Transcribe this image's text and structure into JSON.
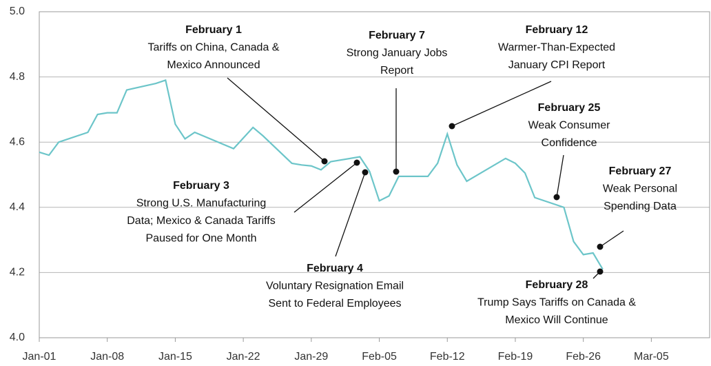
{
  "chart_data": {
    "type": "line",
    "x": [
      "Jan-01",
      "Jan-02",
      "Jan-03",
      "Jan-06",
      "Jan-07",
      "Jan-08",
      "Jan-09",
      "Jan-10",
      "Jan-13",
      "Jan-14",
      "Jan-15",
      "Jan-16",
      "Jan-17",
      "Jan-21",
      "Jan-23",
      "Jan-24",
      "Jan-27",
      "Jan-28",
      "Jan-29",
      "Jan-30",
      "Jan-31",
      "Feb-03",
      "Feb-04",
      "Feb-05",
      "Feb-06",
      "Feb-07",
      "Feb-10",
      "Feb-11",
      "Feb-12",
      "Feb-13",
      "Feb-14",
      "Feb-18",
      "Feb-19",
      "Feb-20",
      "Feb-21",
      "Feb-24",
      "Feb-25",
      "Feb-26",
      "Feb-27",
      "Feb-28"
    ],
    "series": [
      {
        "color": "#6cc5c9",
        "values": [
          4.569,
          4.56,
          4.6,
          4.63,
          4.685,
          4.69,
          4.69,
          4.76,
          4.78,
          4.79,
          4.655,
          4.61,
          4.63,
          4.58,
          4.645,
          4.62,
          4.535,
          4.53,
          4.527,
          4.515,
          4.54,
          4.555,
          4.51,
          4.42,
          4.435,
          4.495,
          4.495,
          4.535,
          4.625,
          4.53,
          4.48,
          4.55,
          4.535,
          4.505,
          4.43,
          4.4,
          4.295,
          4.255,
          4.26,
          4.21
        ]
      }
    ],
    "xlim": [
      "Jan-01",
      "Mar-11"
    ],
    "xticks": [
      "Jan-01",
      "Jan-08",
      "Jan-15",
      "Jan-22",
      "Jan-29",
      "Feb-05",
      "Feb-12",
      "Feb-19",
      "Feb-26",
      "Mar-05"
    ],
    "ylim": [
      4.0,
      5.0
    ],
    "yticks": [
      {
        "value": 4.0,
        "label": "4.0"
      },
      4.2,
      4.4,
      4.6,
      4.8,
      {
        "value": 5.0,
        "label": "5.0"
      }
    ],
    "grid": true,
    "annotations": [
      {
        "title": "February 1",
        "lines": [
          "Tariffs on China, Canada &",
          "Mexico Announced"
        ]
      },
      {
        "title": "February 3",
        "lines": [
          "Strong U.S. Manufacturing",
          "Data; Mexico & Canada Tariffs",
          "Paused for One Month"
        ]
      },
      {
        "title": "February 4",
        "lines": [
          "Voluntary Resignation Email",
          "Sent to Federal Employees"
        ]
      },
      {
        "title": "February 7",
        "lines": [
          "Strong January Jobs",
          "Report"
        ]
      },
      {
        "title": "February 12",
        "lines": [
          "Warmer-Than-Expected",
          "January CPI Report"
        ]
      },
      {
        "title": "February 25",
        "lines": [
          "Weak Consumer",
          "Confidence"
        ]
      },
      {
        "title": "February 27",
        "lines": [
          "Weak Personal",
          "Spending Data"
        ]
      },
      {
        "title": "February 28",
        "lines": [
          "Trump Says Tariffs on Canada &",
          "Mexico Will Continue"
        ]
      }
    ]
  }
}
